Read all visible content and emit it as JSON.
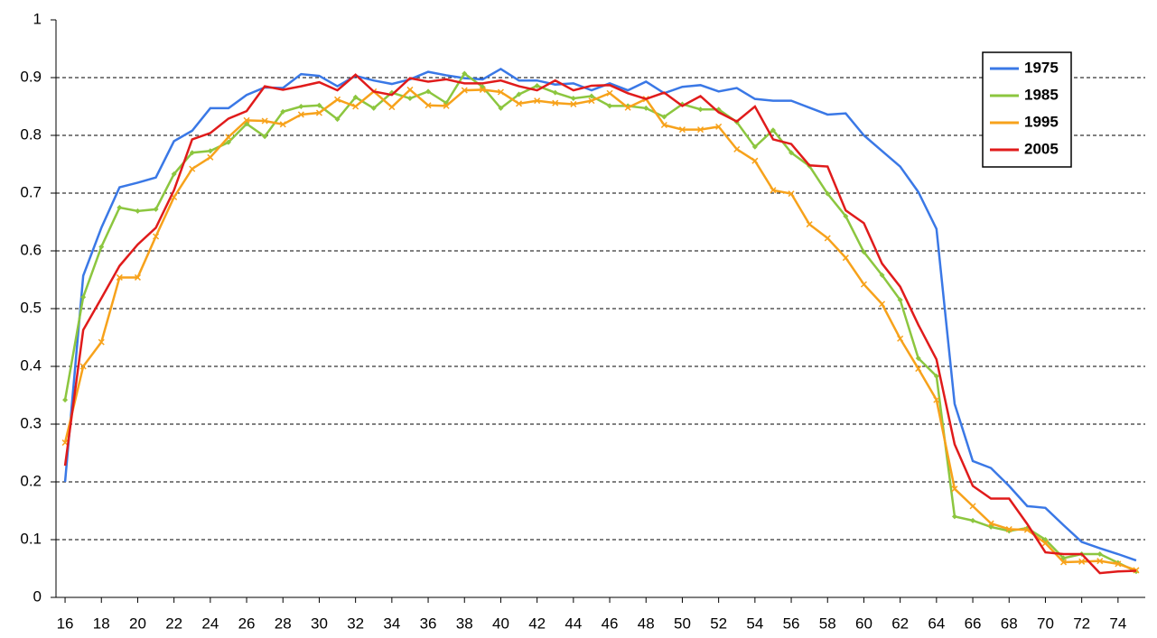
{
  "chart_data": {
    "type": "line",
    "x": [
      16,
      17,
      18,
      19,
      20,
      21,
      22,
      23,
      24,
      25,
      26,
      27,
      28,
      29,
      30,
      31,
      32,
      33,
      34,
      35,
      36,
      37,
      38,
      39,
      40,
      41,
      42,
      43,
      44,
      45,
      46,
      47,
      48,
      49,
      50,
      51,
      52,
      53,
      54,
      55,
      56,
      57,
      58,
      59,
      60,
      61,
      62,
      63,
      64,
      65,
      66,
      67,
      68,
      69,
      70,
      71,
      72,
      73,
      74,
      75
    ],
    "xlim": [
      15.5,
      75.5
    ],
    "xticks": [
      16,
      18,
      20,
      22,
      24,
      26,
      28,
      30,
      32,
      34,
      36,
      38,
      40,
      42,
      44,
      46,
      48,
      50,
      52,
      54,
      56,
      58,
      60,
      62,
      64,
      66,
      68,
      70,
      72,
      74
    ],
    "ylim": [
      0,
      1
    ],
    "yticks": [
      0,
      0.1,
      0.2,
      0.3,
      0.4,
      0.5,
      0.6,
      0.7,
      0.8,
      0.9,
      1
    ],
    "grid": true,
    "legend": "top-right",
    "series": [
      {
        "name": "1975",
        "color": "#3a78e6",
        "values": [
          0.2,
          0.557,
          0.64,
          0.71,
          0.718,
          0.727,
          0.79,
          0.808,
          0.847,
          0.847,
          0.87,
          0.883,
          0.882,
          0.906,
          0.903,
          0.885,
          0.903,
          0.895,
          0.889,
          0.897,
          0.91,
          0.904,
          0.899,
          0.897,
          0.915,
          0.895,
          0.895,
          0.888,
          0.89,
          0.878,
          0.89,
          0.878,
          0.893,
          0.873,
          0.884,
          0.887,
          0.876,
          0.882,
          0.863,
          0.86,
          0.86,
          0.848,
          0.836,
          0.838,
          0.8,
          0.773,
          0.746,
          0.702,
          0.638,
          0.335,
          0.236,
          0.224,
          0.193,
          0.158,
          0.155,
          0.125,
          0.096,
          0.085,
          0.075,
          0.064
        ]
      },
      {
        "name": "1985",
        "color": "#8cc63f",
        "marker": "diamond",
        "values": [
          0.342,
          0.52,
          0.607,
          0.675,
          0.669,
          0.672,
          0.733,
          0.77,
          0.773,
          0.788,
          0.82,
          0.798,
          0.841,
          0.85,
          0.852,
          0.828,
          0.866,
          0.847,
          0.874,
          0.864,
          0.876,
          0.856,
          0.907,
          0.884,
          0.847,
          0.871,
          0.886,
          0.874,
          0.864,
          0.868,
          0.851,
          0.851,
          0.847,
          0.832,
          0.854,
          0.845,
          0.845,
          0.823,
          0.78,
          0.809,
          0.77,
          0.747,
          0.699,
          0.66,
          0.598,
          0.558,
          0.515,
          0.414,
          0.383,
          0.14,
          0.133,
          0.122,
          0.115,
          0.12,
          0.1,
          0.068,
          0.075,
          0.075,
          0.06,
          0.045
        ]
      },
      {
        "name": "1995",
        "color": "#f7a21b",
        "marker": "x",
        "values": [
          0.268,
          0.4,
          0.442,
          0.554,
          0.554,
          0.625,
          0.693,
          0.742,
          0.762,
          0.797,
          0.826,
          0.825,
          0.819,
          0.836,
          0.839,
          0.862,
          0.85,
          0.876,
          0.849,
          0.879,
          0.852,
          0.851,
          0.878,
          0.879,
          0.875,
          0.855,
          0.86,
          0.856,
          0.854,
          0.86,
          0.873,
          0.848,
          0.863,
          0.818,
          0.81,
          0.81,
          0.815,
          0.776,
          0.756,
          0.705,
          0.699,
          0.646,
          0.622,
          0.588,
          0.542,
          0.508,
          0.448,
          0.396,
          0.342,
          0.188,
          0.158,
          0.128,
          0.118,
          0.117,
          0.094,
          0.061,
          0.062,
          0.063,
          0.058,
          0.047
        ]
      },
      {
        "name": "2005",
        "color": "#e01b1b",
        "values": [
          0.228,
          0.463,
          0.518,
          0.574,
          0.611,
          0.64,
          0.705,
          0.793,
          0.804,
          0.829,
          0.842,
          0.885,
          0.879,
          0.885,
          0.892,
          0.878,
          0.905,
          0.876,
          0.87,
          0.899,
          0.893,
          0.897,
          0.89,
          0.89,
          0.895,
          0.885,
          0.878,
          0.895,
          0.878,
          0.886,
          0.887,
          0.873,
          0.863,
          0.874,
          0.851,
          0.868,
          0.84,
          0.824,
          0.85,
          0.793,
          0.785,
          0.748,
          0.746,
          0.67,
          0.648,
          0.578,
          0.538,
          0.472,
          0.412,
          0.265,
          0.193,
          0.171,
          0.171,
          0.127,
          0.078,
          0.075,
          0.075,
          0.042,
          0.045,
          0.046
        ]
      }
    ]
  }
}
